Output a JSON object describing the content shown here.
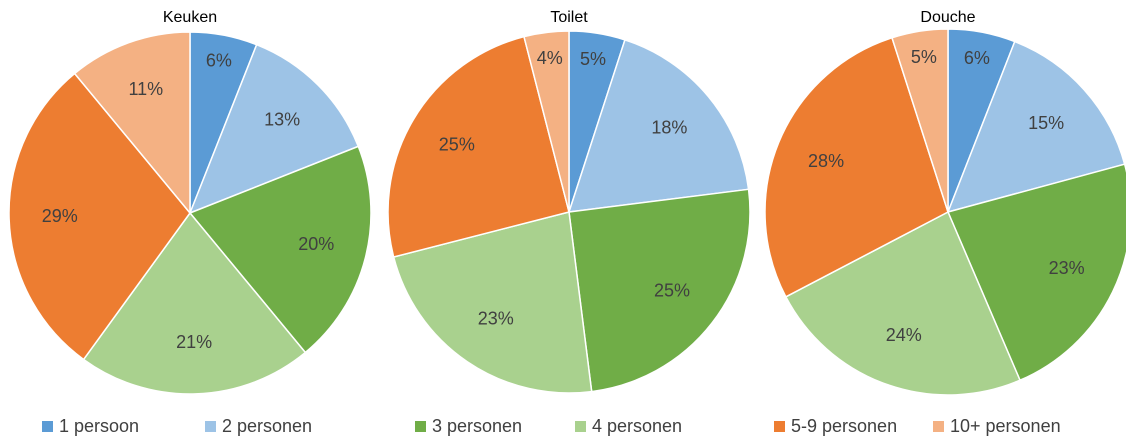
{
  "categories": [
    "1 persoon",
    "2 personen",
    "3 personen",
    "4 personen",
    "5-9 personen",
    "10+ personen"
  ],
  "colors": [
    "#5b9bd5",
    "#9dc3e6",
    "#70ad47",
    "#a9d18e",
    "#ed7d31",
    "#f4b183"
  ],
  "chart_data": [
    {
      "type": "pie",
      "title": "Keuken",
      "values": [
        6,
        13,
        20,
        21,
        29,
        11
      ],
      "value_labels": [
        "6%",
        "13%",
        "20%",
        "21%",
        "29%",
        "11%"
      ]
    },
    {
      "type": "pie",
      "title": "Toilet",
      "values": [
        5,
        18,
        25,
        23,
        25,
        4
      ],
      "value_labels": [
        "5%",
        "18%",
        "25%",
        "23%",
        "25%",
        "4%"
      ]
    },
    {
      "type": "pie",
      "title": "Douche",
      "values": [
        6,
        15,
        23,
        24,
        28,
        5
      ],
      "value_labels": [
        "6%",
        "15%",
        "23%",
        "24%",
        "28%",
        "5%"
      ]
    }
  ]
}
